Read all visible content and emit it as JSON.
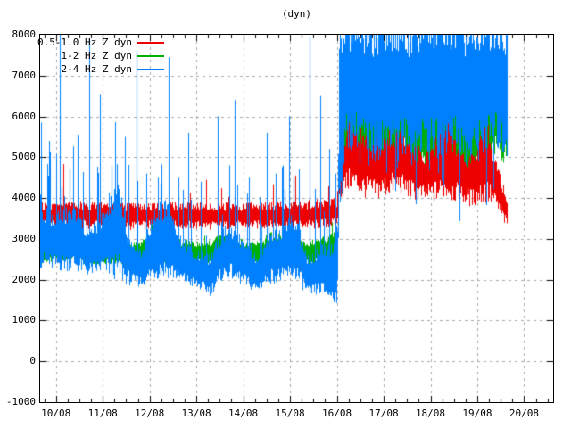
{
  "title": "(dyn)",
  "legend": [
    {
      "label": "0.5-1.0 Hz Z dyn",
      "color": "#ee0000"
    },
    {
      "label": "1-2 Hz Z dyn",
      "color": "#00b000"
    },
    {
      "label": "2-4 Hz Z dyn",
      "color": "#0080ff"
    }
  ],
  "chart_data": {
    "type": "line",
    "title": "(dyn)",
    "grid": true,
    "grid_color": "#a8a8a8",
    "x_axis": {
      "tick_labels": [
        "10/08",
        "11/08",
        "12/08",
        "13/08",
        "14/08",
        "15/08",
        "16/08",
        "17/08",
        "18/08",
        "19/08",
        "20/08"
      ],
      "minor_ticks_per_interval": 3,
      "domain_days": [
        -0.337,
        10.62
      ]
    },
    "y_axis": {
      "ticks": [
        8000,
        7000,
        6000,
        5000,
        4000,
        3000,
        2000,
        1000,
        0,
        -1000
      ],
      "range": [
        -1000,
        8000
      ]
    },
    "data_end_day": 9.64,
    "series": [
      {
        "name": "1-2 Hz Z dyn",
        "color": "#00b000",
        "edge_jitter": 0.45,
        "spike_prob": 0.03,
        "spike_mag": 400,
        "spike_before_day": 6.02,
        "dip_prob": 0,
        "envelope": [
          [
            -0.34,
            2480,
            2850
          ],
          [
            0.3,
            2520,
            3000
          ],
          [
            0.7,
            2450,
            2900
          ],
          [
            1.2,
            2500,
            3000
          ],
          [
            1.7,
            2400,
            2850
          ],
          [
            2.2,
            2500,
            3000
          ],
          [
            2.7,
            2450,
            2900
          ],
          [
            3.2,
            2400,
            2850
          ],
          [
            3.6,
            2550,
            3080
          ],
          [
            4.0,
            2450,
            2900
          ],
          [
            4.3,
            2400,
            2850
          ],
          [
            4.6,
            2550,
            3080
          ],
          [
            5.0,
            2500,
            2950
          ],
          [
            5.4,
            2400,
            2850
          ],
          [
            5.8,
            2500,
            3000
          ],
          [
            6.02,
            2550,
            3150
          ],
          [
            6.08,
            4700,
            6300
          ],
          [
            6.35,
            5100,
            6900
          ],
          [
            6.6,
            4800,
            6400
          ],
          [
            6.9,
            4800,
            6300
          ],
          [
            7.15,
            5100,
            6800
          ],
          [
            7.45,
            5200,
            6900
          ],
          [
            7.7,
            4700,
            6200
          ],
          [
            8.0,
            4900,
            6500
          ],
          [
            8.35,
            5100,
            6900
          ],
          [
            8.65,
            4600,
            6000
          ],
          [
            8.95,
            4700,
            6200
          ],
          [
            9.2,
            4900,
            6500
          ],
          [
            9.45,
            5300,
            7000
          ],
          [
            9.64,
            5100,
            6800
          ]
        ],
        "spikes": [
          [
            0.16,
            4300
          ],
          [
            2.05,
            3350
          ],
          [
            5.9,
            3400
          ]
        ]
      },
      {
        "name": "0.5-1.0 Hz Z dyn",
        "color": "#ee0000",
        "edge_jitter": 0.5,
        "spike_prob": 0.03,
        "spike_mag": 350,
        "spike_before_day": 6.02,
        "dip_prob": 0,
        "envelope": [
          [
            -0.34,
            3380,
            3800
          ],
          [
            0.5,
            3350,
            3820
          ],
          [
            1.5,
            3320,
            3780
          ],
          [
            2.5,
            3350,
            3800
          ],
          [
            3.5,
            3330,
            3780
          ],
          [
            4.5,
            3350,
            3800
          ],
          [
            5.5,
            3350,
            3850
          ],
          [
            6.0,
            3400,
            3900
          ],
          [
            6.07,
            4200,
            5300
          ],
          [
            6.3,
            4500,
            5700
          ],
          [
            6.55,
            4300,
            5500
          ],
          [
            6.8,
            4200,
            5300
          ],
          [
            7.05,
            4300,
            5500
          ],
          [
            7.3,
            4400,
            5500
          ],
          [
            7.6,
            4200,
            5200
          ],
          [
            7.9,
            4100,
            5000
          ],
          [
            8.2,
            4200,
            5400
          ],
          [
            8.35,
            4300,
            5750
          ],
          [
            8.6,
            4100,
            5100
          ],
          [
            8.9,
            4000,
            4900
          ],
          [
            9.18,
            4200,
            5750
          ],
          [
            9.35,
            4000,
            4900
          ],
          [
            9.5,
            3700,
            4400
          ],
          [
            9.64,
            3350,
            3900
          ]
        ],
        "spikes": [
          [
            0.16,
            4830
          ]
        ]
      },
      {
        "name": "2-4 Hz Z dyn",
        "color": "#0080ff",
        "edge_jitter": 0.4,
        "spike_prob": 0.13,
        "spike_mag": 1500,
        "spike_before_day": 6.02,
        "dip_prob": 0.07,
        "envelope": [
          [
            -0.34,
            2500,
            3600
          ],
          [
            0.0,
            2400,
            3500
          ],
          [
            0.35,
            2450,
            3650
          ],
          [
            0.7,
            2250,
            3100
          ],
          [
            1.0,
            2350,
            3500
          ],
          [
            1.35,
            2300,
            4050
          ],
          [
            1.6,
            2000,
            2800
          ],
          [
            1.85,
            1950,
            2650
          ],
          [
            2.1,
            2250,
            3600
          ],
          [
            2.4,
            2300,
            3700
          ],
          [
            2.7,
            2050,
            2900
          ],
          [
            3.0,
            1900,
            2600
          ],
          [
            3.3,
            1750,
            2500
          ],
          [
            3.55,
            2150,
            3100
          ],
          [
            3.75,
            2200,
            3200
          ],
          [
            4.0,
            2000,
            2900
          ],
          [
            4.3,
            1800,
            2450
          ],
          [
            4.55,
            2100,
            3100
          ],
          [
            4.8,
            2100,
            3100
          ],
          [
            5.1,
            2250,
            3450
          ],
          [
            5.4,
            1700,
            2450
          ],
          [
            5.65,
            1800,
            2700
          ],
          [
            5.9,
            1650,
            2700
          ],
          [
            6.02,
            1700,
            3200
          ],
          [
            6.06,
            4200,
            7980
          ],
          [
            6.2,
            5600,
            8050
          ],
          [
            6.5,
            5700,
            8050
          ],
          [
            6.8,
            5300,
            7900
          ],
          [
            7.0,
            5600,
            8050
          ],
          [
            7.3,
            5800,
            8050
          ],
          [
            7.6,
            5300,
            7900
          ],
          [
            7.9,
            5600,
            8050
          ],
          [
            8.2,
            5400,
            8050
          ],
          [
            8.5,
            5700,
            8050
          ],
          [
            8.8,
            5100,
            7900
          ],
          [
            9.1,
            5500,
            8050
          ],
          [
            9.35,
            5700,
            8050
          ],
          [
            9.64,
            5400,
            8000
          ]
        ],
        "spikes": [
          [
            -0.3,
            5850
          ],
          [
            -0.13,
            5400
          ],
          [
            0.095,
            8050
          ],
          [
            0.31,
            4700
          ],
          [
            0.47,
            5550
          ],
          [
            0.72,
            7900
          ],
          [
            0.95,
            6550
          ],
          [
            1.2,
            4800
          ],
          [
            1.49,
            5500
          ],
          [
            1.74,
            7600
          ],
          [
            1.94,
            4600
          ],
          [
            2.18,
            4500
          ],
          [
            2.42,
            7450
          ],
          [
            2.62,
            4500
          ],
          [
            2.84,
            5600
          ],
          [
            3.1,
            4400
          ],
          [
            3.47,
            6000
          ],
          [
            3.71,
            4800
          ],
          [
            3.82,
            6400
          ],
          [
            4.13,
            4500
          ],
          [
            4.51,
            5600
          ],
          [
            4.7,
            4600
          ],
          [
            4.86,
            4800
          ],
          [
            4.99,
            6000
          ],
          [
            5.2,
            4700
          ],
          [
            5.43,
            7950
          ],
          [
            5.66,
            6500
          ],
          [
            5.85,
            5200
          ],
          [
            5.98,
            4600
          ]
        ]
      }
    ]
  }
}
